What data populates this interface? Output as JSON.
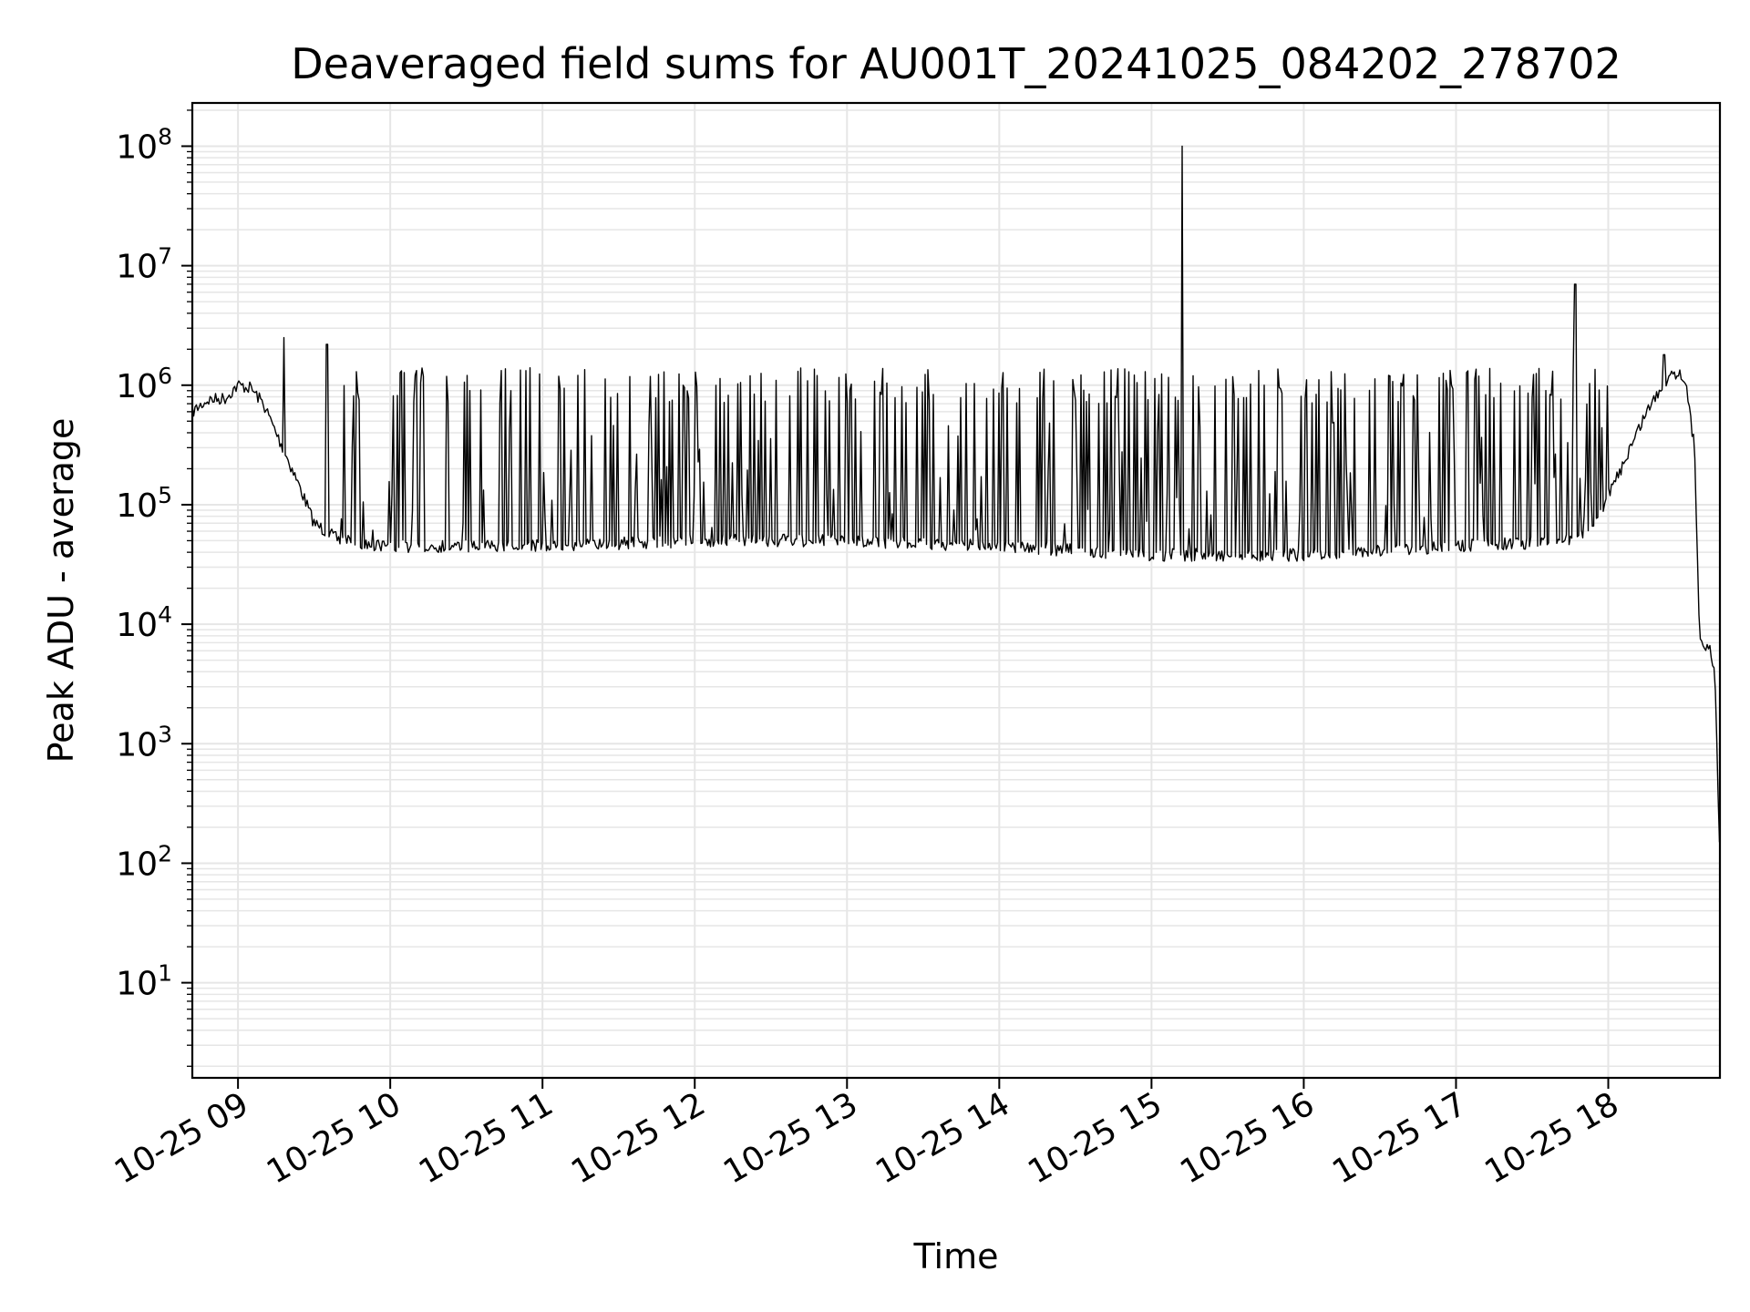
{
  "chart_data": {
    "type": "line",
    "title": "Deaveraged field sums for AU001T_20241025_084202_278702",
    "xlabel": "Time",
    "ylabel": "Peak ADU - average",
    "y_scale": "log",
    "ylim": [
      1.6,
      230000000
    ],
    "xlim": [
      "2024-10-25 08:42",
      "2024-10-25 18:44"
    ],
    "x_ticks": [
      {
        "t": "2024-10-25 09:00",
        "label": "10-25 09"
      },
      {
        "t": "2024-10-25 10:00",
        "label": "10-25 10"
      },
      {
        "t": "2024-10-25 11:00",
        "label": "10-25 11"
      },
      {
        "t": "2024-10-25 12:00",
        "label": "10-25 12"
      },
      {
        "t": "2024-10-25 13:00",
        "label": "10-25 13"
      },
      {
        "t": "2024-10-25 14:00",
        "label": "10-25 14"
      },
      {
        "t": "2024-10-25 15:00",
        "label": "10-25 15"
      },
      {
        "t": "2024-10-25 16:00",
        "label": "10-25 16"
      },
      {
        "t": "2024-10-25 17:00",
        "label": "10-25 17"
      },
      {
        "t": "2024-10-25 18:00",
        "label": "10-25 18"
      }
    ],
    "y_ticks": [
      {
        "value": 10,
        "base": "10",
        "exp": "1"
      },
      {
        "value": 100,
        "base": "10",
        "exp": "2"
      },
      {
        "value": 1000,
        "base": "10",
        "exp": "3"
      },
      {
        "value": 10000,
        "base": "10",
        "exp": "4"
      },
      {
        "value": 100000,
        "base": "10",
        "exp": "5"
      },
      {
        "value": 1000000,
        "base": "10",
        "exp": "6"
      },
      {
        "value": 10000000,
        "base": "10",
        "exp": "7"
      },
      {
        "value": 100000000,
        "base": "10",
        "exp": "8"
      }
    ],
    "grid": true,
    "line_color": "#000000",
    "grid_color": "#e6e6e6",
    "series": [
      {
        "values": [
          [
            "2024-10-25 08:42",
            600000
          ],
          [
            "2024-10-25 08:48",
            750000
          ],
          [
            "2024-10-25 08:55",
            780000
          ],
          [
            "2024-10-25 09:00",
            1000000
          ],
          [
            "2024-10-25 09:05",
            950000
          ],
          [
            "2024-10-25 09:10",
            700000
          ],
          [
            "2024-10-25 09:15",
            400000
          ],
          [
            "2024-10-25 09:20",
            230000
          ],
          [
            "2024-10-25 09:25",
            130000
          ],
          [
            "2024-10-25 09:30",
            70000
          ],
          [
            "2024-10-25 09:40",
            50000
          ],
          [
            "2024-10-25 10:00",
            45000
          ],
          [
            "2024-10-25 11:00",
            45000
          ],
          [
            "2024-10-25 12:00",
            50000
          ],
          [
            "2024-10-25 13:00",
            50000
          ],
          [
            "2024-10-25 14:00",
            45000
          ],
          [
            "2024-10-25 15:00",
            38000
          ],
          [
            "2024-10-25 16:00",
            38000
          ],
          [
            "2024-10-25 17:00",
            45000
          ],
          [
            "2024-10-25 17:45",
            50000
          ],
          [
            "2024-10-25 17:55",
            70000
          ],
          [
            "2024-10-25 18:05",
            200000
          ],
          [
            "2024-10-25 18:15",
            600000
          ],
          [
            "2024-10-25 18:25",
            1300000
          ],
          [
            "2024-10-25 18:30",
            1200000
          ],
          [
            "2024-10-25 18:34",
            300000
          ],
          [
            "2024-10-25 18:36",
            8000
          ],
          [
            "2024-10-25 18:40",
            6000
          ],
          [
            "2024-10-25 18:42",
            4000
          ],
          [
            "2024-10-25 18:44",
            100
          ]
        ],
        "spikes": [
          [
            "2024-10-25 09:18",
            2500000
          ],
          [
            "2024-10-25 09:35",
            2200000
          ],
          [
            "2024-10-25 15:12",
            100000000
          ],
          [
            "2024-10-25 17:47",
            7000000
          ],
          [
            "2024-10-25 18:22",
            1800000
          ]
        ],
        "noise_band": {
          "from": "2024-10-25 09:40",
          "to": "2024-10-25 18:00",
          "upper": 1400000
        }
      }
    ]
  }
}
